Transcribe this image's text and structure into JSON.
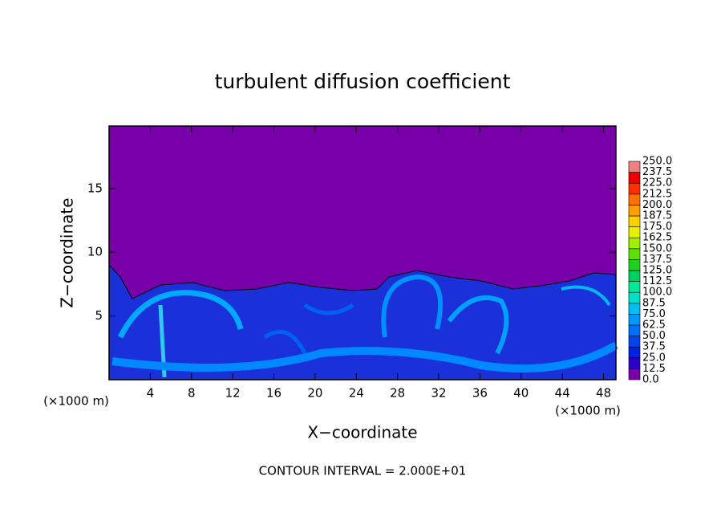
{
  "chart_data": {
    "type": "contour",
    "title": "turbulent diffusion coefficient",
    "x_label": "X−coordinate",
    "y_label": "Z−coordinate",
    "x_unit_left": "(×1000 m)",
    "x_unit_right": "(×1000 m)",
    "footnote": "CONTOUR INTERVAL = 2.000E+01",
    "xlim": [
      0,
      49.2
    ],
    "ylim": [
      0,
      19.9
    ],
    "xticks": [
      4,
      8,
      12,
      16,
      20,
      24,
      28,
      32,
      36,
      40,
      44,
      48
    ],
    "yticks": [
      5,
      10,
      15
    ],
    "colorbar": {
      "levels": [
        {
          "value": 0,
          "label": "0.0"
        },
        {
          "value": 12.5,
          "label": "12.5"
        },
        {
          "value": 25,
          "label": "25.0"
        },
        {
          "value": 37.5,
          "label": "37.5"
        },
        {
          "value": 50,
          "label": "50.0"
        },
        {
          "value": 62.5,
          "label": "62.5"
        },
        {
          "value": 75,
          "label": "75.0"
        },
        {
          "value": 87.5,
          "label": "87.5"
        },
        {
          "value": 100,
          "label": "100.0"
        },
        {
          "value": 112.5,
          "label": "112.5"
        },
        {
          "value": 125,
          "label": "125.0"
        },
        {
          "value": 137.5,
          "label": "137.5"
        },
        {
          "value": 150,
          "label": "150.0"
        },
        {
          "value": 162.5,
          "label": "162.5"
        },
        {
          "value": 175,
          "label": "175.0"
        },
        {
          "value": 187.5,
          "label": "187.5"
        },
        {
          "value": 200,
          "label": "200.0"
        },
        {
          "value": 212.5,
          "label": "212.5"
        },
        {
          "value": 225,
          "label": "225.0"
        },
        {
          "value": 237.5,
          "label": "237.5"
        },
        {
          "value": 250,
          "label": "250.0"
        }
      ],
      "colors": [
        "#7800a8",
        "#2a00c8",
        "#0022e0",
        "#0044f0",
        "#0070ff",
        "#0098ff",
        "#00c0f0",
        "#00e0c8",
        "#00e898",
        "#00d060",
        "#20d020",
        "#60e000",
        "#a0f000",
        "#e8f000",
        "#ffd000",
        "#ffa000",
        "#ff7000",
        "#ff3000",
        "#f00000",
        "#f08080"
      ]
    }
  }
}
